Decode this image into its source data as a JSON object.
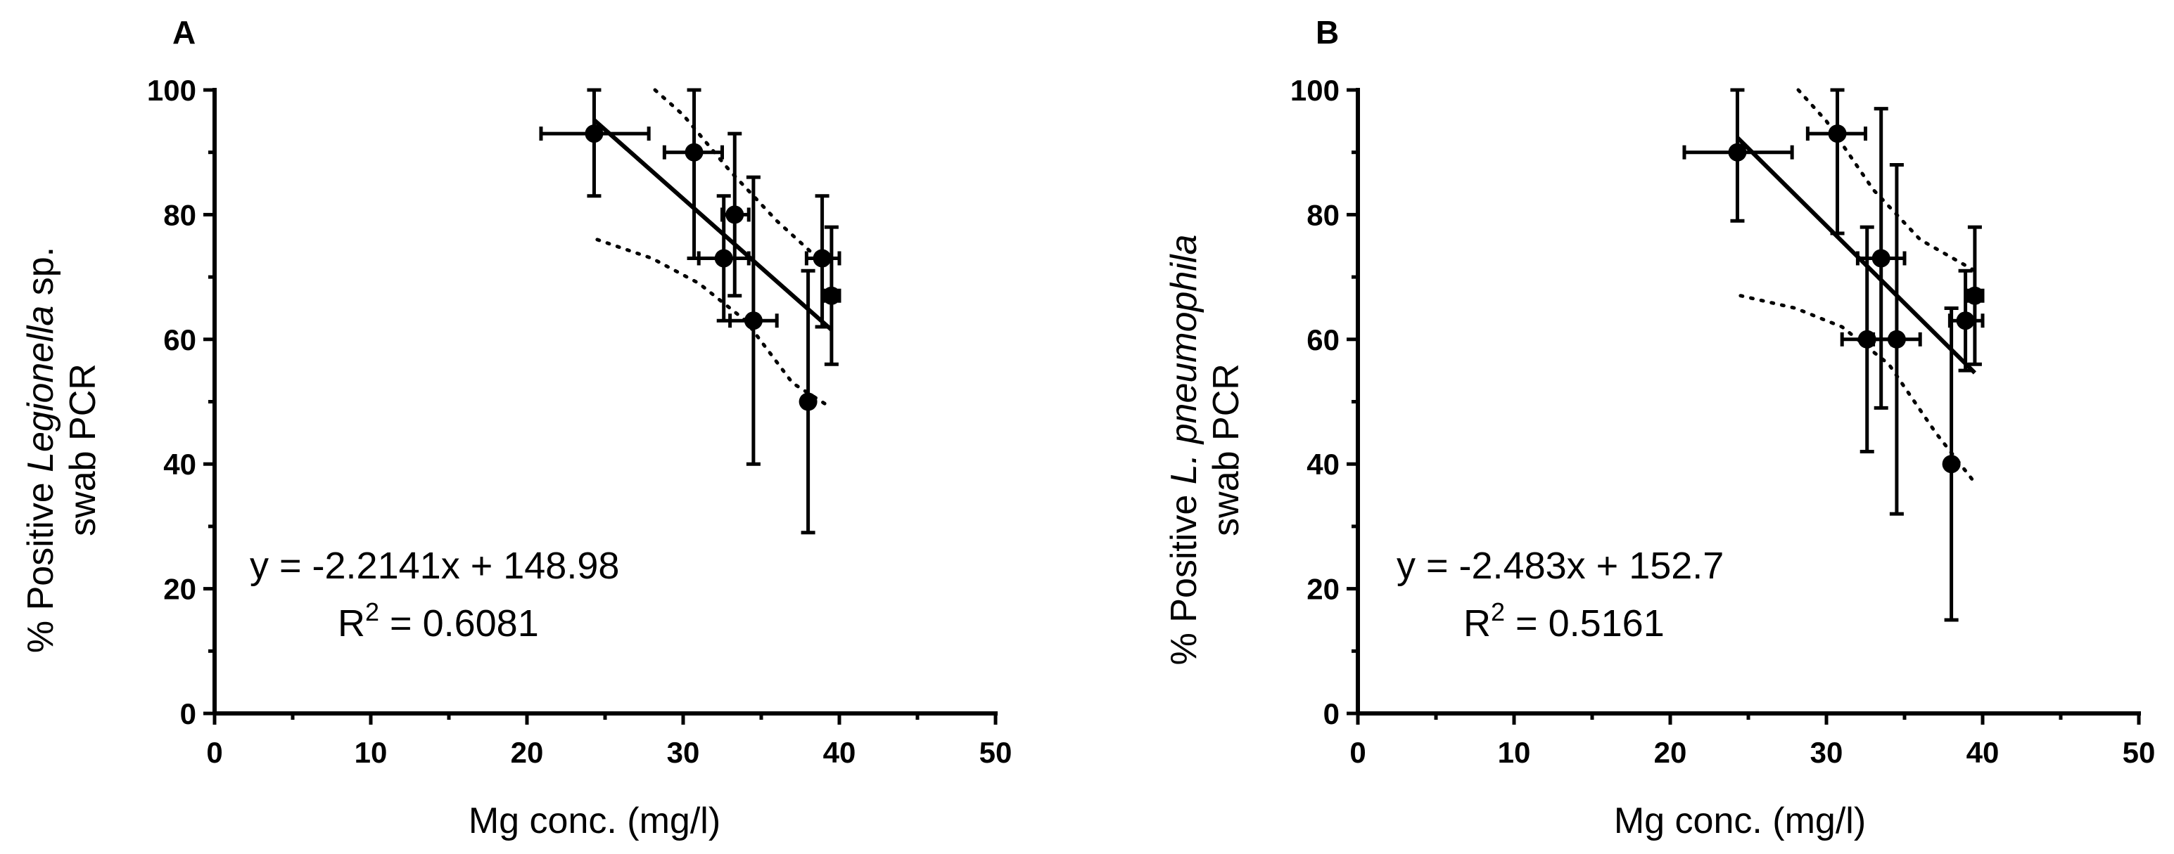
{
  "chart_data": [
    {
      "panel": "A",
      "type": "scatter",
      "xlabel": "Mg conc. (mg/l)",
      "ylabel_parts": [
        "% Positive ",
        "Legionella",
        " sp."
      ],
      "ylabel_line2": "swab PCR",
      "xlim": [
        0,
        50
      ],
      "ylim": [
        0,
        100
      ],
      "xticks": [
        0,
        10,
        20,
        30,
        40,
        50
      ],
      "yticks": [
        0,
        20,
        40,
        60,
        80,
        100
      ],
      "x_tick_labels": [
        "0",
        "10",
        "20",
        "30",
        "40",
        "50"
      ],
      "y_tick_labels": [
        "0",
        "20",
        "40",
        "60",
        "80",
        "100"
      ],
      "points": [
        {
          "x": 24.3,
          "y": 93,
          "xerr": [
            20.9,
            27.8
          ],
          "yerr": [
            83,
            100
          ]
        },
        {
          "x": 30.7,
          "y": 90,
          "xerr": [
            28.8,
            32.5
          ],
          "yerr": [
            73,
            100
          ]
        },
        {
          "x": 33.3,
          "y": 80,
          "xerr": [
            32.5,
            34.2
          ],
          "yerr": [
            67,
            93
          ]
        },
        {
          "x": 32.6,
          "y": 73,
          "xerr": [
            31.0,
            34.2
          ],
          "yerr": [
            63,
            83
          ]
        },
        {
          "x": 34.5,
          "y": 63,
          "xerr": [
            33.0,
            36.0
          ],
          "yerr": [
            40,
            86
          ]
        },
        {
          "x": 38.9,
          "y": 73,
          "xerr": [
            37.9,
            40.0
          ],
          "yerr": [
            62,
            83
          ]
        },
        {
          "x": 39.5,
          "y": 67,
          "xerr": [
            39.0,
            40.0
          ],
          "yerr": [
            56,
            78
          ]
        },
        {
          "x": 38.0,
          "y": 50,
          "xerr": [
            38.0,
            38.0
          ],
          "yerr": [
            29,
            71
          ]
        }
      ],
      "regression": {
        "slope": -2.2141,
        "intercept": 148.98,
        "x_range": [
          24.3,
          39.5
        ]
      },
      "ci_upper": [
        [
          28.2,
          100
        ],
        [
          30,
          96
        ],
        [
          33,
          87
        ],
        [
          36,
          79
        ],
        [
          39.5,
          71
        ]
      ],
      "ci_lower": [
        [
          24.5,
          76
        ],
        [
          28,
          73
        ],
        [
          31,
          69
        ],
        [
          34,
          63
        ],
        [
          37,
          53
        ],
        [
          39.5,
          49
        ]
      ],
      "equation": "y = -2.2141x + 148.98",
      "r2_prefix": "R",
      "r2_sup": "2",
      "r2_suffix": " = 0.6081"
    },
    {
      "panel": "B",
      "type": "scatter",
      "xlabel": "Mg conc. (mg/l)",
      "ylabel_parts": [
        "% Positive ",
        "L. pneumophila",
        ""
      ],
      "ylabel_line2": "swab PCR",
      "xlim": [
        0,
        50
      ],
      "ylim": [
        0,
        100
      ],
      "xticks": [
        0,
        10,
        20,
        30,
        40,
        50
      ],
      "yticks": [
        0,
        20,
        40,
        60,
        80,
        100
      ],
      "x_tick_labels": [
        "0",
        "10",
        "20",
        "30",
        "40",
        "50"
      ],
      "y_tick_labels": [
        "0",
        "20",
        "40",
        "60",
        "80",
        "100"
      ],
      "points": [
        {
          "x": 24.3,
          "y": 90,
          "xerr": [
            20.9,
            27.8
          ],
          "yerr": [
            79,
            100
          ]
        },
        {
          "x": 30.7,
          "y": 93,
          "xerr": [
            28.8,
            32.5
          ],
          "yerr": [
            77,
            100
          ]
        },
        {
          "x": 33.5,
          "y": 73,
          "xerr": [
            32.0,
            35.0
          ],
          "yerr": [
            49,
            97
          ]
        },
        {
          "x": 32.6,
          "y": 60,
          "xerr": [
            31.0,
            34.2
          ],
          "yerr": [
            42,
            78
          ]
        },
        {
          "x": 34.5,
          "y": 60,
          "xerr": [
            33.0,
            36.0
          ],
          "yerr": [
            32,
            88
          ]
        },
        {
          "x": 38.9,
          "y": 63,
          "xerr": [
            37.9,
            40.0
          ],
          "yerr": [
            55,
            71
          ]
        },
        {
          "x": 39.5,
          "y": 67,
          "xerr": [
            39.0,
            40.0
          ],
          "yerr": [
            56,
            78
          ]
        },
        {
          "x": 38.0,
          "y": 40,
          "xerr": [
            38.0,
            38.0
          ],
          "yerr": [
            15,
            65
          ]
        }
      ],
      "regression": {
        "slope": -2.483,
        "intercept": 152.7,
        "x_range": [
          24.3,
          39.5
        ]
      },
      "ci_upper": [
        [
          28.2,
          100
        ],
        [
          30,
          95
        ],
        [
          33,
          84
        ],
        [
          36,
          76
        ],
        [
          39.5,
          71
        ]
      ],
      "ci_lower": [
        [
          24.5,
          67
        ],
        [
          28,
          65
        ],
        [
          31,
          62
        ],
        [
          34,
          56
        ],
        [
          37,
          45
        ],
        [
          39.5,
          37
        ]
      ],
      "equation": "y = -2.483x + 152.7",
      "r2_prefix": "R",
      "r2_sup": "2",
      "r2_suffix": " = 0.5161"
    }
  ]
}
